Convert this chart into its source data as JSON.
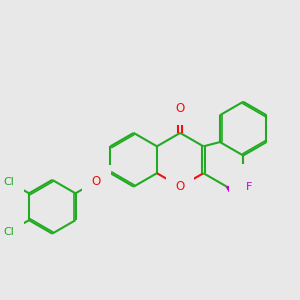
{
  "bg_color": "#e8e8e8",
  "bond_color": "#22aa22",
  "atom_colors": {
    "O": "#ee1111",
    "F": "#cc00cc",
    "Cl": "#22aa22"
  },
  "bond_width": 1.5,
  "fig_size": [
    3.0,
    3.0
  ],
  "dpi": 100
}
